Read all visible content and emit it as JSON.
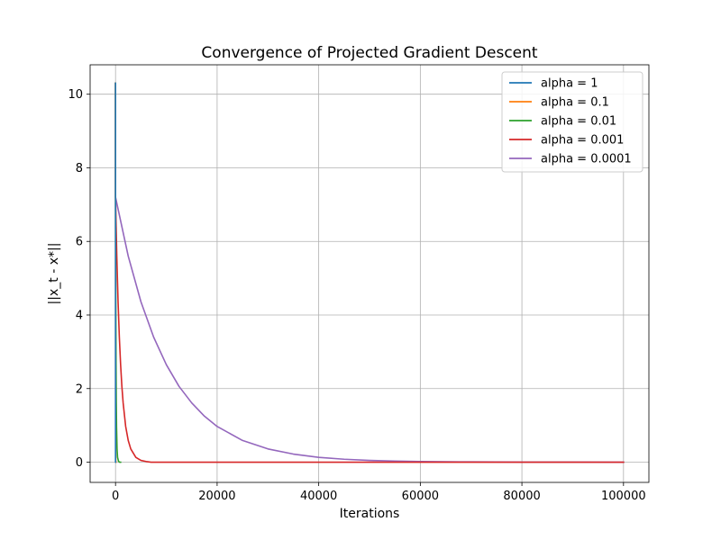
{
  "chart_data": {
    "type": "line",
    "title": "Convergence of Projected Gradient Descent",
    "xlabel": "Iterations",
    "ylabel": "||x_t - x*||",
    "xlim": [
      -5000,
      105000
    ],
    "ylim": [
      -0.55,
      10.8
    ],
    "xticks": [
      0,
      20000,
      40000,
      60000,
      80000,
      100000
    ],
    "yticks": [
      0,
      2,
      4,
      6,
      8,
      10
    ],
    "grid": true,
    "legend_position": "top-right",
    "series": [
      {
        "name": "alpha = 1",
        "color": "#1f77b4",
        "x": [
          0,
          1,
          2,
          3,
          5,
          10
        ],
        "y": [
          10.3,
          0.0,
          0.0,
          0.0,
          0.0,
          0.0
        ]
      },
      {
        "name": "alpha = 0.1",
        "color": "#ff7f0e",
        "x": [
          0,
          1,
          5,
          10,
          20,
          30,
          50,
          80
        ],
        "y": [
          10.3,
          7.2,
          4.3,
          2.5,
          0.87,
          0.31,
          0.04,
          0.0
        ]
      },
      {
        "name": "alpha = 0.01",
        "color": "#2ca02c",
        "x": [
          0,
          1,
          10,
          25,
          50,
          100,
          150,
          200,
          300,
          400,
          600,
          800,
          1000
        ],
        "y": [
          10.3,
          7.2,
          6.6,
          5.6,
          4.4,
          2.65,
          1.61,
          0.97,
          0.36,
          0.13,
          0.02,
          0.0,
          0.0
        ]
      },
      {
        "name": "alpha = 0.001",
        "color": "#d62728",
        "x": [
          0,
          1,
          100,
          250,
          500,
          750,
          1000,
          1250,
          1500,
          2000,
          2500,
          3000,
          4000,
          5000,
          6000,
          7000,
          8000,
          100000
        ],
        "y": [
          10.3,
          7.2,
          6.52,
          5.6,
          4.36,
          3.4,
          2.65,
          2.06,
          1.61,
          0.97,
          0.59,
          0.36,
          0.13,
          0.048,
          0.018,
          0.0,
          0.0,
          0.0
        ]
      },
      {
        "name": "alpha = 0.0001",
        "color": "#9467bd",
        "x": [
          0,
          1,
          2500,
          5000,
          7500,
          10000,
          12500,
          15000,
          17500,
          20000,
          25000,
          30000,
          35000,
          40000,
          45000,
          50000,
          55000,
          60000,
          65000,
          70000,
          75000,
          80000,
          90000,
          100000
        ],
        "y": [
          10.3,
          7.2,
          5.6,
          4.36,
          3.4,
          2.65,
          2.06,
          1.61,
          1.25,
          0.97,
          0.59,
          0.36,
          0.22,
          0.13,
          0.08,
          0.048,
          0.029,
          0.018,
          0.011,
          0.007,
          0.004,
          0.002,
          0.001,
          0.0
        ]
      }
    ]
  }
}
